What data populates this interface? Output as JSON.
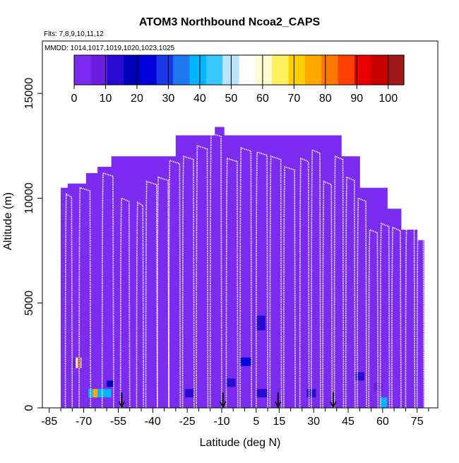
{
  "chart_data": {
    "type": "heatmap",
    "title": "ATOM3 Northbound Ncoa2_CAPS",
    "subtitle_flights": "Flts: 7,8,9,10,11,12",
    "subtitle_dates": "MMDD: 1014,1017,1019,1020,1023,1025",
    "xlabel": "Latitude (deg N)",
    "ylabel": "Altitude (m)",
    "xlim": [
      -88,
      84
    ],
    "ylim": [
      0,
      17500
    ],
    "xticks": [
      -85,
      -70,
      -55,
      -40,
      -25,
      -10,
      5,
      15,
      30,
      45,
      60,
      75
    ],
    "x_minor_ticks": [
      -80,
      -75,
      -65,
      -60,
      -50,
      -45,
      -35,
      -30,
      -20,
      -15,
      -5,
      0,
      10,
      20,
      25,
      35,
      40,
      50,
      55,
      65,
      70,
      80
    ],
    "yticks": [
      0,
      5000,
      10000,
      15000
    ],
    "colorbar": {
      "min": 0,
      "max": 105,
      "ticks": [
        0,
        10,
        20,
        30,
        40,
        50,
        60,
        70,
        80,
        90,
        100
      ],
      "colors": [
        "#7b2cf0",
        "#6a1ee0",
        "#2a0ad0",
        "#0000b8",
        "#0000d8",
        "#1838e8",
        "#1e78f0",
        "#00b4ff",
        "#38c8ff",
        "#b8e4ff",
        "#ffffff",
        "#fffbd0",
        "#fff060",
        "#ffd000",
        "#ffa800",
        "#ff7800",
        "#ff4000",
        "#e80000",
        "#c80000",
        "#a01818"
      ]
    },
    "background_value": 2,
    "coverage": [
      {
        "x": [
          -80,
          -77
        ],
        "top": 10500
      },
      {
        "x": [
          -77,
          -69
        ],
        "top": 10700
      },
      {
        "x": [
          -69,
          -64
        ],
        "top": 11200
      },
      {
        "x": [
          -64,
          -58
        ],
        "top": 11500
      },
      {
        "x": [
          -58,
          -53
        ],
        "top": 12000
      },
      {
        "x": [
          -53,
          -30
        ],
        "top": 12000
      },
      {
        "x": [
          -30,
          -13
        ],
        "top": 13000
      },
      {
        "x": [
          -13,
          -9
        ],
        "top": 13400
      },
      {
        "x": [
          -9,
          42
        ],
        "top": 13000
      },
      {
        "x": [
          42,
          50
        ],
        "top": 12000
      },
      {
        "x": [
          50,
          62
        ],
        "top": 10500
      },
      {
        "x": [
          62,
          68
        ],
        "top": 9500
      },
      {
        "x": [
          68,
          75
        ],
        "top": 8500
      },
      {
        "x": [
          75,
          78
        ],
        "top": 8000
      }
    ],
    "highlights": [
      {
        "x": [
          -74,
          -71
        ],
        "y": [
          1900,
          2400
        ],
        "v": 60
      },
      {
        "x": [
          -74.5,
          -73.5
        ],
        "y": [
          1900,
          2400
        ],
        "v": 10
      },
      {
        "x": [
          -72.5,
          -71.5
        ],
        "y": [
          1900,
          2400
        ],
        "v": 95
      },
      {
        "x": [
          -68,
          -58
        ],
        "y": [
          500,
          900
        ],
        "v": 40
      },
      {
        "x": [
          -66,
          -64
        ],
        "y": [
          500,
          900
        ],
        "v": 75
      },
      {
        "x": [
          -60,
          -57
        ],
        "y": [
          1000,
          1300
        ],
        "v": 18
      },
      {
        "x": [
          -26,
          -22
        ],
        "y": [
          500,
          900
        ],
        "v": 15
      },
      {
        "x": [
          -8,
          -4
        ],
        "y": [
          1000,
          1400
        ],
        "v": 12
      },
      {
        "x": [
          -2,
          3
        ],
        "y": [
          2000,
          2400
        ],
        "v": 25
      },
      {
        "x": [
          5,
          9
        ],
        "y": [
          3700,
          4400
        ],
        "v": 14
      },
      {
        "x": [
          5,
          10
        ],
        "y": [
          500,
          900
        ],
        "v": 12
      },
      {
        "x": [
          27,
          31
        ],
        "y": [
          500,
          900
        ],
        "v": 14
      },
      {
        "x": [
          48,
          52
        ],
        "y": [
          1300,
          1700
        ],
        "v": 12
      },
      {
        "x": [
          56,
          60
        ],
        "y": [
          800,
          1200
        ],
        "v": 10
      },
      {
        "x": [
          59,
          62
        ],
        "y": [
          0,
          500
        ],
        "v": 40
      },
      {
        "x": [
          64,
          68
        ],
        "y": [
          1500,
          2000
        ],
        "v": 5
      }
    ],
    "profiles": [
      {
        "x0": -78,
        "x1": -75,
        "top": 10200
      },
      {
        "x0": -72,
        "x1": -67,
        "top": 10500
      },
      {
        "x0": -62,
        "x1": -57,
        "top": 11200
      },
      {
        "x0": -54,
        "x1": -50,
        "top": 10000
      },
      {
        "x0": -47,
        "x1": -44,
        "top": 9800
      },
      {
        "x0": -43,
        "x1": -38,
        "top": 10800
      },
      {
        "x0": -38,
        "x1": -33,
        "top": 11000
      },
      {
        "x0": -33,
        "x1": -28,
        "top": 11800
      },
      {
        "x0": -27,
        "x1": -22,
        "top": 12000
      },
      {
        "x0": -21,
        "x1": -16,
        "top": 12500
      },
      {
        "x0": -15,
        "x1": -10,
        "top": 13100
      },
      {
        "x0": -8,
        "x1": -3,
        "top": 11900
      },
      {
        "x0": -2,
        "x1": 3,
        "top": 12400
      },
      {
        "x0": 5,
        "x1": 10,
        "top": 12200
      },
      {
        "x0": 11,
        "x1": 16,
        "top": 12000
      },
      {
        "x0": 17,
        "x1": 22,
        "top": 11500
      },
      {
        "x0": 24,
        "x1": 28,
        "top": 11900
      },
      {
        "x0": 29,
        "x1": 33,
        "top": 12300
      },
      {
        "x0": 34,
        "x1": 38,
        "top": 10800
      },
      {
        "x0": 39,
        "x1": 43,
        "top": 12000
      },
      {
        "x0": 44,
        "x1": 48,
        "top": 11000
      },
      {
        "x0": 49,
        "x1": 53,
        "top": 10000
      },
      {
        "x0": 54,
        "x1": 58,
        "top": 8500
      },
      {
        "x0": 59,
        "x1": 63,
        "top": 8800
      },
      {
        "x0": 64,
        "x1": 68,
        "top": 8600
      },
      {
        "x0": 70,
        "x1": 74,
        "top": 8800
      },
      {
        "x0": 75,
        "x1": 78,
        "top": 8800
      }
    ],
    "arrows_x": [
      -53.5,
      -9.5,
      14.5,
      38.5
    ]
  }
}
